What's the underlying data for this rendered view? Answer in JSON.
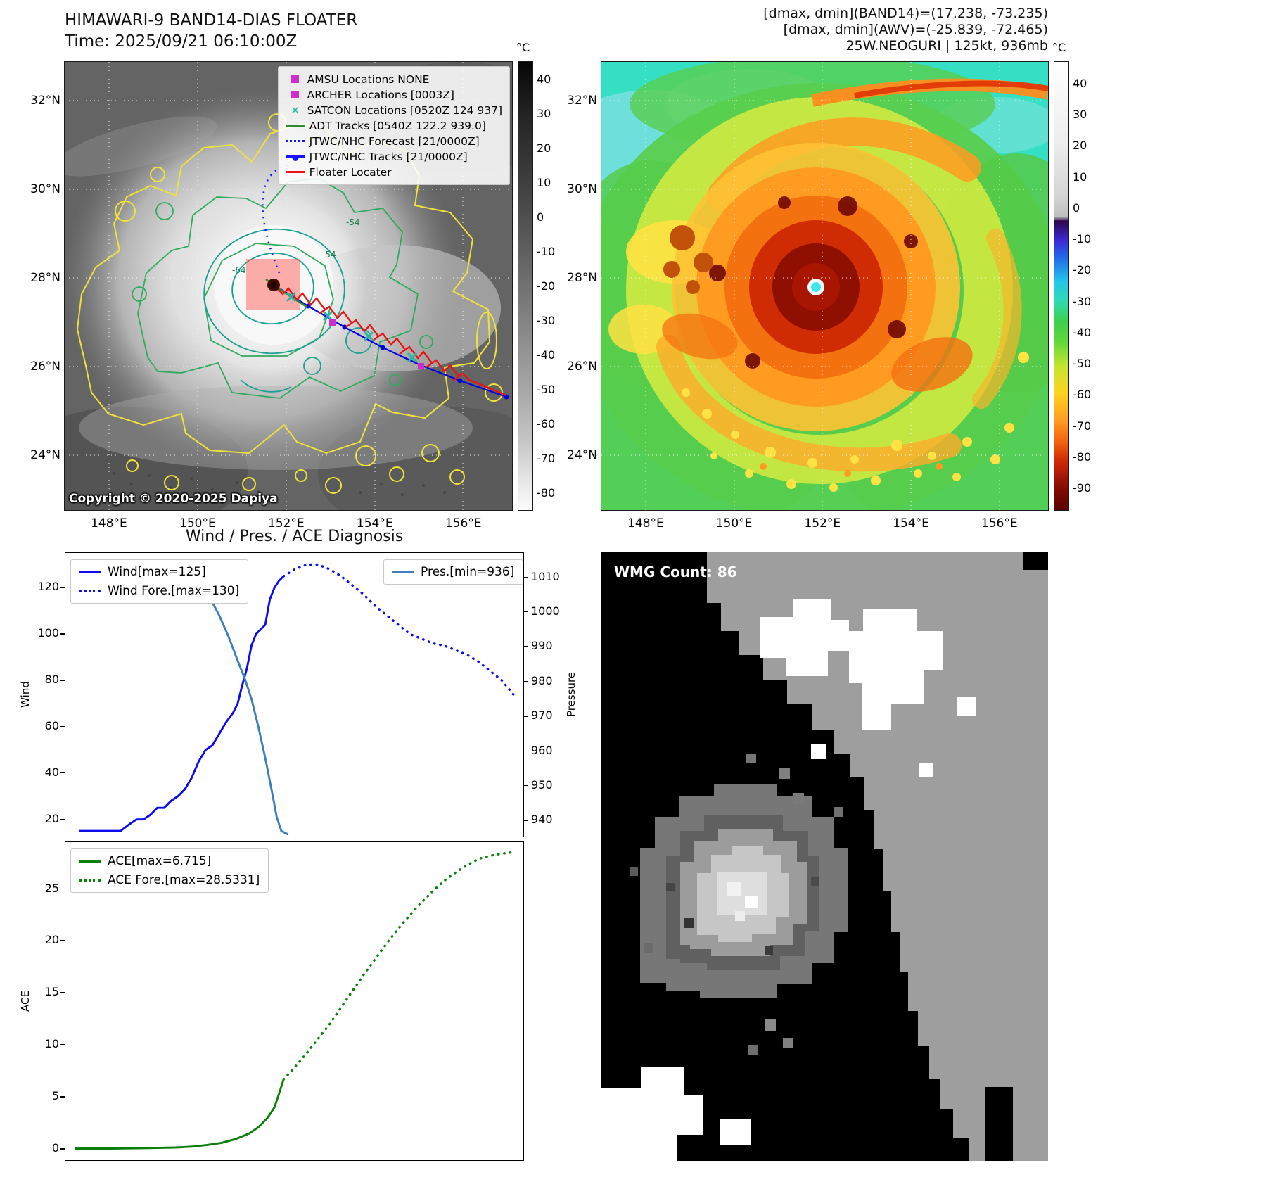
{
  "panel_band14": {
    "title": "HIMAWARI-9 BAND14-DIAS FLOATER",
    "time_label": "Time: 2025/09/21 06:10:00Z",
    "copyright": "Copyright © 2020-2025 Dapiya",
    "colorbar_unit": "°C",
    "colorbar_ticks": [
      40,
      30,
      20,
      10,
      0,
      -10,
      -20,
      -30,
      -40,
      -50,
      -60,
      -70,
      -80
    ],
    "x_ticks": [
      "148°E",
      "150°E",
      "152°E",
      "154°E",
      "156°E"
    ],
    "y_ticks": [
      "32°N",
      "30°N",
      "28°N",
      "26°N",
      "24°N"
    ],
    "contour_labels": [
      "-54",
      "-54",
      "-64"
    ],
    "legend": [
      {
        "label": "AMSU Locations NONE",
        "marker": "square",
        "color": "#cc2fcc"
      },
      {
        "label": "ARCHER Locations [0003Z]",
        "marker": "square",
        "color": "#cc2fcc"
      },
      {
        "label": "SATCON Locations [0520Z 124 937]",
        "marker": "x",
        "color": "#2ab5a5"
      },
      {
        "label": "ADT Tracks [0540Z 122.2 939.0]",
        "marker": "line",
        "color": "#2e8b2e"
      },
      {
        "label": "JTWC/NHC Forecast [21/0000Z]",
        "marker": "dotted",
        "color": "#1414ff"
      },
      {
        "label": "JTWC/NHC Tracks [21/0000Z]",
        "marker": "line-marker",
        "color": "#1414ff"
      },
      {
        "label": "Floater Locater",
        "marker": "line",
        "color": "#ea1212"
      }
    ]
  },
  "panel_awv": {
    "header": [
      "[dmax, dmin](BAND14)=(17.238, -73.235)",
      "[dmax, dmin](AWV)=(-25.839, -72.465)",
      "25W.NEOGURI | 125kt, 936mb"
    ],
    "colorbar_unit": "°C",
    "colorbar_ticks": [
      40,
      30,
      20,
      10,
      0,
      -10,
      -20,
      -30,
      -40,
      -50,
      -60,
      -70,
      -80,
      -90
    ],
    "x_ticks": [
      "148°E",
      "150°E",
      "152°E",
      "154°E",
      "156°E"
    ],
    "y_ticks": [
      "32°N",
      "30°N",
      "28°N",
      "26°N",
      "24°N"
    ]
  },
  "diagnosis_title": "Wind / Pres. / ACE Diagnosis",
  "panel_wmg": {
    "count_label": "WMG Count: 86"
  },
  "chart_data": [
    {
      "type": "line",
      "title": "Wind / Pres. / ACE Diagnosis",
      "xlabel": "",
      "ylabel_left": "Wind",
      "ylabel_right": "Pressure",
      "ylim_left": [
        12,
        135
      ],
      "ylim_right": [
        935,
        1017
      ],
      "yticks_left": [
        20,
        40,
        60,
        80,
        100,
        120
      ],
      "yticks_right": [
        940,
        950,
        960,
        970,
        980,
        990,
        1000,
        1010
      ],
      "legend_left": [
        {
          "label": "Wind[max=125]",
          "style": "solid",
          "color": "#0b0bee"
        },
        {
          "label": "Wind Fore.[max=130]",
          "style": "dotted",
          "color": "#0b0bee"
        }
      ],
      "legend_right": [
        {
          "label": "Pres.[min=936]",
          "style": "solid",
          "color": "#3f7fb5"
        }
      ],
      "series": [
        {
          "name": "Wind",
          "axis": "left",
          "style": "solid",
          "color": "#0b0bee",
          "x": [
            0.03,
            0.08,
            0.12,
            0.14,
            0.155,
            0.17,
            0.185,
            0.2,
            0.215,
            0.23,
            0.245,
            0.26,
            0.275,
            0.29,
            0.305,
            0.32,
            0.335,
            0.35,
            0.365,
            0.375,
            0.385,
            0.395,
            0.405,
            0.415,
            0.425,
            0.435,
            0.445,
            0.455,
            0.465,
            0.475
          ],
          "y": [
            15,
            15,
            15,
            18,
            20,
            20,
            22,
            25,
            25,
            28,
            30,
            33,
            38,
            45,
            50,
            52,
            57,
            62,
            66,
            70,
            78,
            85,
            95,
            100,
            102,
            104,
            115,
            120,
            123,
            125
          ]
        },
        {
          "name": "Wind Fore.",
          "axis": "left",
          "style": "dotted",
          "color": "#0b0bee",
          "x": [
            0.475,
            0.5,
            0.525,
            0.55,
            0.575,
            0.6,
            0.625,
            0.65,
            0.675,
            0.7,
            0.725,
            0.75,
            0.775,
            0.8,
            0.825,
            0.85,
            0.875,
            0.9,
            0.925,
            0.95,
            0.975
          ],
          "y": [
            125,
            128,
            130,
            130,
            128,
            125,
            121,
            117,
            112,
            108,
            104,
            100,
            98,
            96,
            95,
            93,
            91,
            88,
            84,
            80,
            74
          ]
        },
        {
          "name": "Pres.",
          "axis": "right",
          "style": "solid",
          "color": "#3f7fb5",
          "x": [
            0.295,
            0.315,
            0.335,
            0.355,
            0.375,
            0.39,
            0.405,
            0.42,
            0.435,
            0.45,
            0.46,
            0.47,
            0.485
          ],
          "y": [
            1009,
            1004,
            999,
            993,
            986,
            981,
            975,
            967,
            958,
            948,
            941,
            937,
            936
          ]
        }
      ]
    },
    {
      "type": "line",
      "ylabel_left": "ACE",
      "ylim_left": [
        -1.2,
        29.5
      ],
      "yticks_left": [
        0,
        5,
        10,
        15,
        20,
        25
      ],
      "legend_left": [
        {
          "label": "ACE[max=6.715]",
          "style": "solid",
          "color": "#0a800a"
        },
        {
          "label": "ACE Fore.[max=28.5331]",
          "style": "dotted",
          "color": "#0a800a"
        }
      ],
      "series": [
        {
          "name": "ACE",
          "axis": "left",
          "style": "solid",
          "color": "#0a800a",
          "x": [
            0.02,
            0.1,
            0.18,
            0.24,
            0.28,
            0.31,
            0.34,
            0.37,
            0.4,
            0.42,
            0.44,
            0.455,
            0.465,
            0.475
          ],
          "y": [
            0.05,
            0.05,
            0.1,
            0.15,
            0.25,
            0.4,
            0.6,
            0.95,
            1.5,
            2.1,
            3.0,
            4.0,
            5.3,
            6.715
          ]
        },
        {
          "name": "ACE Fore.",
          "axis": "left",
          "style": "dotted",
          "color": "#0a800a",
          "x": [
            0.475,
            0.5,
            0.525,
            0.55,
            0.575,
            0.6,
            0.625,
            0.65,
            0.675,
            0.7,
            0.725,
            0.75,
            0.775,
            0.8,
            0.825,
            0.85,
            0.875,
            0.9,
            0.925,
            0.95,
            0.975
          ],
          "y": [
            6.715,
            7.9,
            9.2,
            10.6,
            12.0,
            13.6,
            15.2,
            16.8,
            18.3,
            19.8,
            21.2,
            22.5,
            23.7,
            24.8,
            25.8,
            26.6,
            27.3,
            27.9,
            28.2,
            28.4,
            28.53
          ]
        }
      ]
    }
  ]
}
